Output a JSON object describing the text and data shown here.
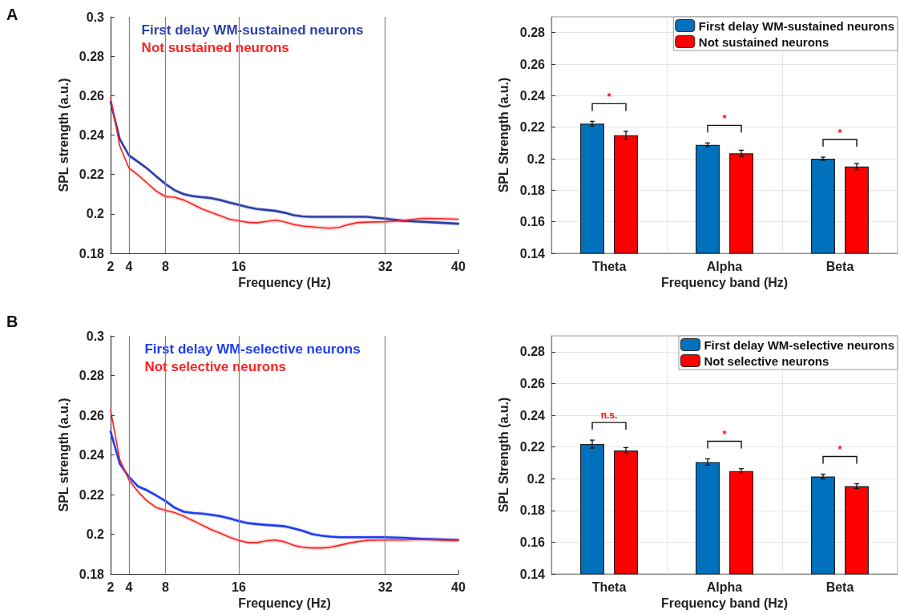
{
  "chart_data": [
    {
      "type": "line",
      "ylabel": "SPL strength (a.u.)",
      "xlabel": "Frequency (Hz)",
      "annotations": [
        "A"
      ],
      "xlim": [
        2,
        40
      ],
      "xticks": [
        2,
        4,
        8,
        16,
        32,
        40
      ],
      "ylim": [
        0.18,
        0.3
      ],
      "yticks": [
        0.18,
        0.2,
        0.22,
        0.24,
        0.26,
        0.28,
        0.3
      ],
      "legend": "top",
      "marker": "none",
      "line_style": "solid",
      "x": [
        2,
        3,
        4,
        5,
        6,
        7,
        8,
        9,
        10,
        11,
        12,
        13,
        14,
        15,
        16,
        17,
        18,
        19,
        20,
        21,
        22,
        23,
        24,
        25,
        26,
        27,
        28,
        29,
        30,
        31,
        32,
        34,
        36,
        38,
        40
      ],
      "ref_lines": [
        {
          "axis": "x",
          "value": 4,
          "color": "#808080"
        },
        {
          "axis": "x",
          "value": 8,
          "color": "#808080"
        },
        {
          "axis": "x",
          "value": 16,
          "color": "#808080"
        },
        {
          "axis": "x",
          "value": 32,
          "color": "#808080"
        }
      ],
      "series": [
        {
          "name": "First delay WM-sustained neurons",
          "color": "#2a3fa8",
          "values": [
            0.2568,
            0.238,
            0.2297,
            0.2264,
            0.223,
            0.219,
            0.2152,
            0.212,
            0.21,
            0.209,
            0.2085,
            0.208,
            0.207,
            0.2057,
            0.2046,
            0.2034,
            0.2025,
            0.202,
            0.2015,
            0.2006,
            0.1993,
            0.1987,
            0.1985,
            0.1985,
            0.1985,
            0.1985,
            0.1985,
            0.1985,
            0.1985,
            0.198,
            0.1976,
            0.1965,
            0.196,
            0.1955,
            0.195
          ],
          "lower": [
            0.2558,
            0.237,
            0.2287,
            0.2254,
            0.222,
            0.218,
            0.2142,
            0.211,
            0.209,
            0.208,
            0.2075,
            0.207,
            0.206,
            0.2047,
            0.2036,
            0.2024,
            0.2015,
            0.201,
            0.2005,
            0.1996,
            0.1983,
            0.1977,
            0.1975,
            0.1975,
            0.1975,
            0.1975,
            0.1975,
            0.1975,
            0.1975,
            0.197,
            0.1966,
            0.1955,
            0.195,
            0.1945,
            0.194
          ],
          "upper": [
            0.2578,
            0.239,
            0.2307,
            0.2274,
            0.224,
            0.22,
            0.2162,
            0.213,
            0.211,
            0.21,
            0.2095,
            0.209,
            0.208,
            0.2067,
            0.2056,
            0.2044,
            0.2035,
            0.203,
            0.2025,
            0.2016,
            0.2003,
            0.1997,
            0.1995,
            0.1995,
            0.1995,
            0.1995,
            0.1995,
            0.1995,
            0.1995,
            0.199,
            0.1986,
            0.1975,
            0.197,
            0.1965,
            0.196
          ]
        },
        {
          "name": "Not sustained neurons",
          "color": "#ff1f1f",
          "values": [
            0.259,
            0.2345,
            0.2233,
            0.2197,
            0.2156,
            0.2115,
            0.2088,
            0.2085,
            0.207,
            0.2048,
            0.2025,
            0.2007,
            0.199,
            0.1973,
            0.1965,
            0.1957,
            0.1955,
            0.1962,
            0.1968,
            0.196,
            0.1946,
            0.1938,
            0.1934,
            0.193,
            0.1927,
            0.1932,
            0.1946,
            0.1956,
            0.1958,
            0.1959,
            0.196,
            0.1966,
            0.1977,
            0.1976,
            0.1973
          ],
          "lower": [
            0.258,
            0.2335,
            0.2223,
            0.2187,
            0.2146,
            0.2105,
            0.2078,
            0.2075,
            0.206,
            0.2038,
            0.2015,
            0.1997,
            0.198,
            0.1963,
            0.1955,
            0.1947,
            0.1945,
            0.1952,
            0.1958,
            0.195,
            0.1936,
            0.1928,
            0.1924,
            0.192,
            0.1917,
            0.1922,
            0.1936,
            0.1946,
            0.1948,
            0.1949,
            0.195,
            0.1956,
            0.1967,
            0.1966,
            0.1963
          ],
          "upper": [
            0.26,
            0.2355,
            0.2243,
            0.2207,
            0.2166,
            0.2125,
            0.2098,
            0.2095,
            0.208,
            0.2058,
            0.2035,
            0.2017,
            0.2,
            0.1983,
            0.1975,
            0.1967,
            0.1965,
            0.1972,
            0.1978,
            0.197,
            0.1956,
            0.1948,
            0.1944,
            0.194,
            0.1937,
            0.1942,
            0.1956,
            0.1966,
            0.1968,
            0.1969,
            0.197,
            0.1976,
            0.1987,
            0.1986,
            0.1983
          ]
        }
      ]
    },
    {
      "type": "bar",
      "ylabel": "SPL Strength (a.u.)",
      "xlabel": "Frequency band (Hz)",
      "categories": [
        "Theta",
        "Alpha",
        "Beta"
      ],
      "ylim": [
        0.14,
        0.29
      ],
      "yticks": [
        0.14,
        0.16,
        0.18,
        0.2,
        0.22,
        0.24,
        0.26,
        0.28
      ],
      "grid": true,
      "legend": "top right",
      "annotations": [
        "*",
        "*",
        "*"
      ],
      "series": [
        {
          "name": "First delay WM-sustained neurons",
          "color": "#0072bd",
          "values": [
            0.2222,
            0.2088,
            0.2
          ],
          "errors": [
            0.0015,
            0.0012,
            0.001
          ]
        },
        {
          "name": "Not sustained neurons",
          "color": "#ff0000",
          "values": [
            0.2149,
            0.2034,
            0.195
          ],
          "errors": [
            0.0025,
            0.002,
            0.002
          ]
        }
      ]
    },
    {
      "type": "line",
      "ylabel": "SPL strength (a.u.)",
      "xlabel": "Frequency (Hz)",
      "annotations": [
        "B"
      ],
      "xlim": [
        2,
        40
      ],
      "xticks": [
        2,
        4,
        8,
        16,
        32,
        40
      ],
      "ylim": [
        0.18,
        0.3
      ],
      "yticks": [
        0.18,
        0.2,
        0.22,
        0.24,
        0.26,
        0.28,
        0.3
      ],
      "legend": "top",
      "marker": "none",
      "line_style": "solid",
      "x": [
        2,
        3,
        4,
        5,
        6,
        7,
        8,
        9,
        10,
        11,
        12,
        13,
        14,
        15,
        16,
        17,
        18,
        19,
        20,
        21,
        22,
        23,
        24,
        25,
        26,
        27,
        28,
        29,
        30,
        31,
        32,
        34,
        36,
        38,
        40
      ],
      "ref_lines": [
        {
          "axis": "x",
          "value": 4,
          "color": "#808080"
        },
        {
          "axis": "x",
          "value": 8,
          "color": "#808080"
        },
        {
          "axis": "x",
          "value": 16,
          "color": "#808080"
        },
        {
          "axis": "x",
          "value": 32,
          "color": "#808080"
        }
      ],
      "series": [
        {
          "name": "First delay WM-selective neurons",
          "color": "#1f3cf0",
          "values": [
            0.2518,
            0.2356,
            0.2289,
            0.2241,
            0.2221,
            0.2195,
            0.2167,
            0.2134,
            0.2113,
            0.2107,
            0.2104,
            0.2098,
            0.2091,
            0.208,
            0.2067,
            0.2056,
            0.2051,
            0.2047,
            0.2044,
            0.204,
            0.2029,
            0.2017,
            0.2001,
            0.1993,
            0.1988,
            0.1985,
            0.1985,
            0.1985,
            0.1985,
            0.1985,
            0.1985,
            0.1982,
            0.1977,
            0.1974,
            0.1971
          ],
          "lower": [
            0.2508,
            0.2346,
            0.2279,
            0.2231,
            0.2211,
            0.2185,
            0.2157,
            0.2124,
            0.2103,
            0.2097,
            0.2094,
            0.2088,
            0.2081,
            0.207,
            0.2057,
            0.2046,
            0.2041,
            0.2037,
            0.2034,
            0.203,
            0.2019,
            0.2007,
            0.1991,
            0.1983,
            0.1978,
            0.1975,
            0.1975,
            0.1975,
            0.1975,
            0.1975,
            0.1975,
            0.1972,
            0.1967,
            0.1964,
            0.1961
          ],
          "upper": [
            0.2528,
            0.2366,
            0.2299,
            0.2251,
            0.2231,
            0.2205,
            0.2177,
            0.2144,
            0.2123,
            0.2117,
            0.2114,
            0.2108,
            0.2101,
            0.209,
            0.2077,
            0.2066,
            0.2061,
            0.2057,
            0.2054,
            0.205,
            0.2039,
            0.2027,
            0.2011,
            0.2003,
            0.1998,
            0.1995,
            0.1995,
            0.1995,
            0.1995,
            0.1995,
            0.1995,
            0.1992,
            0.1987,
            0.1984,
            0.1981
          ]
        },
        {
          "name": "Not selective neurons",
          "color": "#ff1f1f",
          "values": [
            0.2626,
            0.2376,
            0.2275,
            0.2214,
            0.2167,
            0.2134,
            0.212,
            0.2109,
            0.2091,
            0.2069,
            0.2046,
            0.2023,
            0.2005,
            0.1985,
            0.1969,
            0.1958,
            0.1958,
            0.1967,
            0.1971,
            0.1962,
            0.1944,
            0.1934,
            0.1931,
            0.1931,
            0.1934,
            0.1944,
            0.1955,
            0.1963,
            0.1969,
            0.197,
            0.1971,
            0.1971,
            0.1974,
            0.1971,
            0.1969
          ],
          "lower": [
            0.2616,
            0.2366,
            0.2265,
            0.2204,
            0.2157,
            0.2124,
            0.211,
            0.2099,
            0.2081,
            0.2059,
            0.2036,
            0.2013,
            0.1995,
            0.1975,
            0.1959,
            0.1948,
            0.1948,
            0.1957,
            0.1961,
            0.1952,
            0.1934,
            0.1924,
            0.1921,
            0.1921,
            0.1924,
            0.1934,
            0.1945,
            0.1953,
            0.1959,
            0.196,
            0.1961,
            0.1961,
            0.1964,
            0.1961,
            0.1959
          ],
          "upper": [
            0.2636,
            0.2386,
            0.2285,
            0.2224,
            0.2177,
            0.2144,
            0.213,
            0.2119,
            0.2101,
            0.2079,
            0.2056,
            0.2033,
            0.2015,
            0.1995,
            0.1979,
            0.1968,
            0.1968,
            0.1977,
            0.1981,
            0.1972,
            0.1954,
            0.1944,
            0.1941,
            0.1941,
            0.1944,
            0.1954,
            0.1965,
            0.1973,
            0.1979,
            0.198,
            0.1981,
            0.1981,
            0.1984,
            0.1981,
            0.1979
          ]
        }
      ]
    },
    {
      "type": "bar",
      "ylabel": "SPL Strength (a.u.)",
      "xlabel": "Frequency band (Hz)",
      "categories": [
        "Theta",
        "Alpha",
        "Beta"
      ],
      "ylim": [
        0.14,
        0.29
      ],
      "yticks": [
        0.14,
        0.16,
        0.18,
        0.2,
        0.22,
        0.24,
        0.26,
        0.28
      ],
      "grid": true,
      "legend": "top right",
      "annotations": [
        "n.s.",
        "*",
        "*"
      ],
      "series": [
        {
          "name": "First delay WM-selective neurons",
          "color": "#0072bd",
          "values": [
            0.2218,
            0.2105,
            0.2014
          ],
          "errors": [
            0.0025,
            0.002,
            0.0015
          ]
        },
        {
          "name": "Not selective neurons",
          "color": "#ff0000",
          "values": [
            0.2178,
            0.2048,
            0.1953
          ],
          "errors": [
            0.0018,
            0.0015,
            0.0015
          ]
        }
      ]
    }
  ]
}
